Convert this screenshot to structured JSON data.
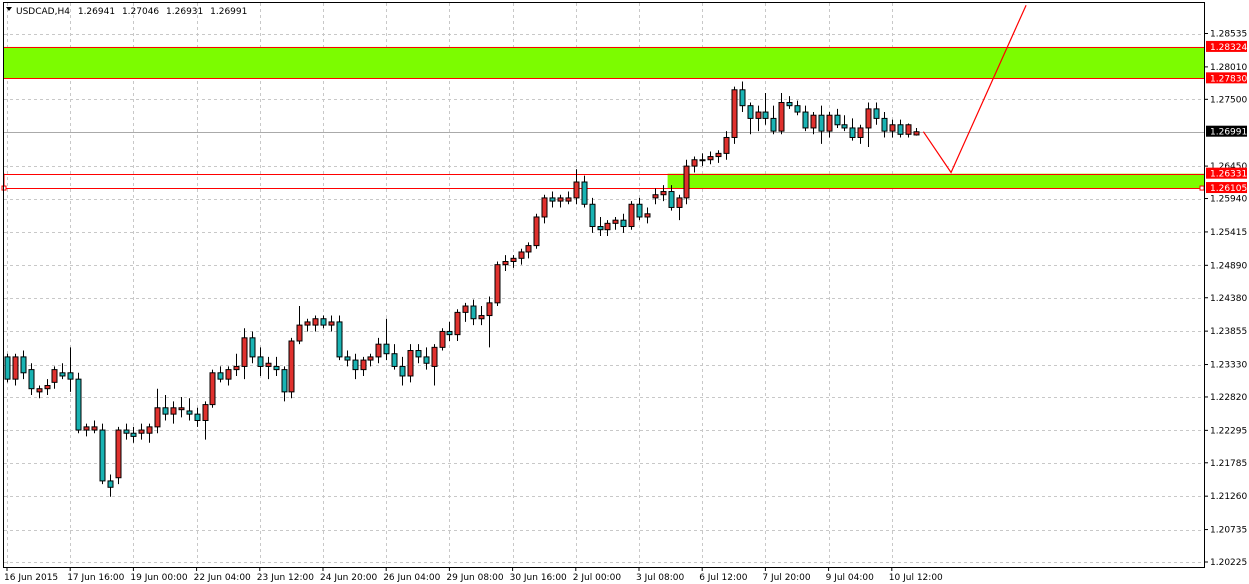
{
  "header": {
    "symbol": "USDCAD,H4",
    "open": "1.26941",
    "high": "1.27046",
    "low": "1.26931",
    "close": "1.26991"
  },
  "colors": {
    "background": "#ffffff",
    "grid": "#c8c8c8",
    "bull": "#e0312e",
    "bear": "#19b3b3",
    "zone": "#7cfc00",
    "zone_edge": "#ff0000",
    "projection": "#ff0000",
    "tag_text": "#ffffff",
    "current_tag_bg": "#000000"
  },
  "chart_data": {
    "type": "candlestick",
    "ylim": [
      1.20225,
      1.29025
    ],
    "y_ticks": [
      "1.28535",
      "1.28010",
      "1.27500",
      "1.26450",
      "1.25940",
      "1.25415",
      "1.24890",
      "1.24380",
      "1.23855",
      "1.23330",
      "1.22820",
      "1.22295",
      "1.21785",
      "1.21260",
      "1.20735",
      "1.20225"
    ],
    "y_tick_values": [
      1.28535,
      1.2801,
      1.275,
      1.2645,
      1.2594,
      1.25415,
      1.2489,
      1.2438,
      1.23855,
      1.2333,
      1.2282,
      1.22295,
      1.21785,
      1.2126,
      1.20735,
      1.20225
    ],
    "x_ticks": [
      "16 Jun 2015",
      "17 Jun 16:00",
      "19 Jun 00:00",
      "22 Jun 04:00",
      "23 Jun 12:00",
      "24 Jun 20:00",
      "26 Jun 04:00",
      "29 Jun 08:00",
      "30 Jun 16:00",
      "2 Jul 00:00",
      "3 Jul 08:00",
      "6 Jul 12:00",
      "7 Jul 20:00",
      "9 Jul 04:00",
      "10 Jul 12:00"
    ],
    "x_tick_index": [
      0,
      8,
      16,
      24,
      32,
      40,
      48,
      56,
      64,
      72,
      80,
      88,
      96,
      104,
      112
    ],
    "zones": [
      {
        "from": 1.2783,
        "to": 1.28324,
        "start_index": 0
      },
      {
        "from": 1.26105,
        "to": 1.26331,
        "start_index": 84
      }
    ],
    "levels": [
      {
        "label": "1.28324",
        "value": 1.28324
      },
      {
        "label": "1.27830",
        "value": 1.2783
      },
      {
        "label": "1.26331",
        "value": 1.26331
      },
      {
        "label": "1.26105",
        "value": 1.26105
      }
    ],
    "current_price": {
      "label": "1.26991",
      "value": 1.26991
    },
    "projection": [
      {
        "index": 116,
        "price": 1.26991
      },
      {
        "index": 119.5,
        "price": 1.2635
      },
      {
        "index": 129,
        "price": 1.2898
      }
    ],
    "candles": [
      [
        1.2345,
        1.235,
        1.2305,
        1.231
      ],
      [
        1.231,
        1.235,
        1.23,
        1.2345
      ],
      [
        1.2345,
        1.2355,
        1.231,
        1.232
      ],
      [
        1.2325,
        1.2335,
        1.2285,
        1.2295
      ],
      [
        1.229,
        1.23,
        1.228,
        1.2295
      ],
      [
        1.2295,
        1.231,
        1.2285,
        1.23
      ],
      [
        1.2305,
        1.233,
        1.2295,
        1.2325
      ],
      [
        1.232,
        1.2335,
        1.231,
        1.2315
      ],
      [
        1.232,
        1.236,
        1.229,
        1.231
      ],
      [
        1.231,
        1.232,
        1.2225,
        1.223
      ],
      [
        1.223,
        1.224,
        1.222,
        1.2235
      ],
      [
        1.223,
        1.2245,
        1.2225,
        1.2235
      ],
      [
        1.223,
        1.224,
        1.2145,
        1.215
      ],
      [
        1.215,
        1.216,
        1.2125,
        1.214
      ],
      [
        1.2155,
        1.2235,
        1.2145,
        1.223
      ],
      [
        1.223,
        1.224,
        1.2215,
        1.2225
      ],
      [
        1.2225,
        1.2235,
        1.221,
        1.222
      ],
      [
        1.2225,
        1.224,
        1.2215,
        1.223
      ],
      [
        1.2225,
        1.224,
        1.221,
        1.2235
      ],
      [
        1.2235,
        1.2295,
        1.2225,
        1.2265
      ],
      [
        1.2265,
        1.2285,
        1.2245,
        1.2255
      ],
      [
        1.2255,
        1.2275,
        1.224,
        1.2265
      ],
      [
        1.2262,
        1.2282,
        1.225,
        1.2265
      ],
      [
        1.226,
        1.228,
        1.2245,
        1.2255
      ],
      [
        1.2255,
        1.2265,
        1.2235,
        1.2245
      ],
      [
        1.2245,
        1.2275,
        1.2215,
        1.227
      ],
      [
        1.227,
        1.2325,
        1.2265,
        1.232
      ],
      [
        1.232,
        1.233,
        1.2305,
        1.231
      ],
      [
        1.231,
        1.233,
        1.23,
        1.2325
      ],
      [
        1.2325,
        1.235,
        1.2315,
        1.233
      ],
      [
        1.233,
        1.239,
        1.231,
        1.2375
      ],
      [
        1.2375,
        1.2385,
        1.2335,
        1.2345
      ],
      [
        1.2345,
        1.236,
        1.2315,
        1.233
      ],
      [
        1.233,
        1.2345,
        1.231,
        1.2335
      ],
      [
        1.233,
        1.2345,
        1.2315,
        1.2325
      ],
      [
        1.2325,
        1.233,
        1.2275,
        1.229
      ],
      [
        1.229,
        1.2375,
        1.228,
        1.237
      ],
      [
        1.237,
        1.2425,
        1.2365,
        1.2395
      ],
      [
        1.2395,
        1.2405,
        1.2385,
        1.24
      ],
      [
        1.2395,
        1.241,
        1.2385,
        1.2405
      ],
      [
        1.2405,
        1.241,
        1.239,
        1.2395
      ],
      [
        1.2395,
        1.241,
        1.2385,
        1.24
      ],
      [
        1.24,
        1.241,
        1.234,
        1.2345
      ],
      [
        1.2345,
        1.2355,
        1.233,
        1.234
      ],
      [
        1.234,
        1.235,
        1.231,
        1.2325
      ],
      [
        1.2325,
        1.2345,
        1.2315,
        1.234
      ],
      [
        1.234,
        1.235,
        1.233,
        1.2345
      ],
      [
        1.2345,
        1.2375,
        1.2335,
        1.2365
      ],
      [
        1.2365,
        1.2405,
        1.234,
        1.235
      ],
      [
        1.235,
        1.2365,
        1.2325,
        1.233
      ],
      [
        1.233,
        1.2345,
        1.23,
        1.2315
      ],
      [
        1.2315,
        1.2365,
        1.2305,
        1.2355
      ],
      [
        1.2355,
        1.2365,
        1.2335,
        1.2345
      ],
      [
        1.2345,
        1.236,
        1.2325,
        1.2335
      ],
      [
        1.233,
        1.2365,
        1.23,
        1.236
      ],
      [
        1.236,
        1.239,
        1.2355,
        1.2385
      ],
      [
        1.2385,
        1.24,
        1.237,
        1.238
      ],
      [
        1.238,
        1.242,
        1.237,
        1.2415
      ],
      [
        1.2415,
        1.243,
        1.24,
        1.2425
      ],
      [
        1.2425,
        1.2435,
        1.2395,
        1.2405
      ],
      [
        1.2405,
        1.2425,
        1.2395,
        1.241
      ],
      [
        1.241,
        1.244,
        1.236,
        1.243
      ],
      [
        1.243,
        1.2495,
        1.2425,
        1.249
      ],
      [
        1.249,
        1.2505,
        1.248,
        1.2495
      ],
      [
        1.2495,
        1.2505,
        1.2485,
        1.25
      ],
      [
        1.25,
        1.2515,
        1.249,
        1.251
      ],
      [
        1.251,
        1.2525,
        1.25,
        1.252
      ],
      [
        1.252,
        1.257,
        1.2515,
        1.2565
      ],
      [
        1.2565,
        1.26,
        1.2555,
        1.2595
      ],
      [
        1.2595,
        1.2605,
        1.258,
        1.259
      ],
      [
        1.259,
        1.26,
        1.258,
        1.2595
      ],
      [
        1.259,
        1.2605,
        1.2585,
        1.2595
      ],
      [
        1.2595,
        1.264,
        1.2585,
        1.262
      ],
      [
        1.262,
        1.263,
        1.258,
        1.2585
      ],
      [
        1.2585,
        1.2595,
        1.254,
        1.255
      ],
      [
        1.255,
        1.2565,
        1.2535,
        1.2545
      ],
      [
        1.2545,
        1.256,
        1.2535,
        1.2555
      ],
      [
        1.2555,
        1.2565,
        1.2545,
        1.256
      ],
      [
        1.256,
        1.257,
        1.254,
        1.255
      ],
      [
        1.255,
        1.259,
        1.2545,
        1.2585
      ],
      [
        1.2585,
        1.2595,
        1.256,
        1.2565
      ],
      [
        1.2565,
        1.258,
        1.2555,
        1.257
      ],
      [
        1.2595,
        1.261,
        1.2585,
        1.26
      ],
      [
        1.26,
        1.2615,
        1.259,
        1.2605
      ],
      [
        1.2605,
        1.2615,
        1.2575,
        1.258
      ],
      [
        1.258,
        1.26,
        1.256,
        1.2595
      ],
      [
        1.2595,
        1.2655,
        1.2585,
        1.2645
      ],
      [
        1.2645,
        1.266,
        1.2635,
        1.2655
      ],
      [
        1.2655,
        1.2665,
        1.2645,
        1.2655
      ],
      [
        1.2655,
        1.2668,
        1.2648,
        1.266
      ],
      [
        1.266,
        1.267,
        1.265,
        1.2665
      ],
      [
        1.2665,
        1.27,
        1.2655,
        1.269
      ],
      [
        1.269,
        1.277,
        1.268,
        1.2765
      ],
      [
        1.2765,
        1.2778,
        1.273,
        1.274
      ],
      [
        1.274,
        1.2745,
        1.2695,
        1.272
      ],
      [
        1.272,
        1.274,
        1.27,
        1.273
      ],
      [
        1.273,
        1.276,
        1.271,
        1.272
      ],
      [
        1.272,
        1.274,
        1.2695,
        1.27
      ],
      [
        1.27,
        1.276,
        1.2695,
        1.2745
      ],
      [
        1.2745,
        1.2755,
        1.2735,
        1.274
      ],
      [
        1.274,
        1.2748,
        1.2725,
        1.273
      ],
      [
        1.273,
        1.274,
        1.27,
        1.2705
      ],
      [
        1.2705,
        1.273,
        1.2695,
        1.2725
      ],
      [
        1.2725,
        1.274,
        1.268,
        1.27
      ],
      [
        1.27,
        1.273,
        1.269,
        1.2725
      ],
      [
        1.2725,
        1.2735,
        1.2705,
        1.271
      ],
      [
        1.271,
        1.2725,
        1.27,
        1.2705
      ],
      [
        1.2705,
        1.272,
        1.2685,
        1.269
      ],
      [
        1.269,
        1.271,
        1.268,
        1.2705
      ],
      [
        1.2705,
        1.2745,
        1.2675,
        1.2735
      ],
      [
        1.2735,
        1.2745,
        1.271,
        1.272
      ],
      [
        1.272,
        1.273,
        1.269,
        1.27
      ],
      [
        1.27,
        1.2718,
        1.269,
        1.271
      ],
      [
        1.271,
        1.2718,
        1.269,
        1.2695
      ],
      [
        1.2695,
        1.2712,
        1.269,
        1.271
      ],
      [
        1.2694,
        1.2705,
        1.2693,
        1.2699
      ]
    ]
  }
}
